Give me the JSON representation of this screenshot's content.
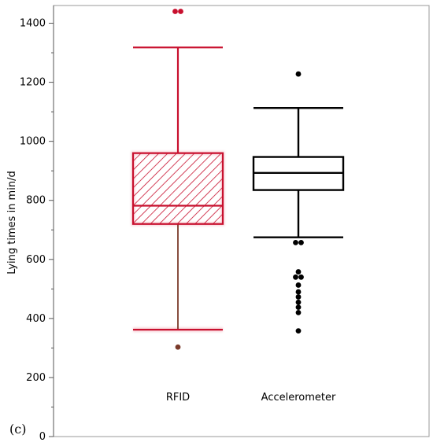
{
  "panel_label": "(c)",
  "chart_data": {
    "type": "box",
    "title": "",
    "xlabel": "",
    "ylabel": "Lying times in min/d",
    "ylim": [
      0,
      1460
    ],
    "yticks": [
      0,
      200,
      400,
      600,
      800,
      1000,
      1200,
      1400
    ],
    "minor_tick_step": 100,
    "grid": false,
    "categories": [
      "RFID",
      "Accelerometer"
    ],
    "series": [
      {
        "name": "RFID",
        "color": "#c8102e",
        "whisker_low": 362,
        "q1": 720,
        "median": 782,
        "q3": 960,
        "whisker_high": 1318,
        "box_pattern": "diagonal-hatch",
        "outliers": [
          {
            "value": 1440,
            "count": 2
          },
          {
            "value": 303,
            "count": 1
          }
        ]
      },
      {
        "name": "Accelerometer",
        "color": "#000000",
        "whisker_low": 675,
        "q1": 835,
        "median": 893,
        "q3": 947,
        "whisker_high": 1113,
        "box_pattern": "none",
        "outliers": [
          {
            "value": 1228,
            "count": 1
          },
          {
            "value": 657,
            "count": 2
          },
          {
            "value": 558,
            "count": 1
          },
          {
            "value": 540,
            "count": 2
          },
          {
            "value": 513,
            "count": 1
          },
          {
            "value": 490,
            "count": 1
          },
          {
            "value": 473,
            "count": 1
          },
          {
            "value": 455,
            "count": 1
          },
          {
            "value": 438,
            "count": 1
          },
          {
            "value": 420,
            "count": 1
          },
          {
            "value": 358,
            "count": 1
          }
        ]
      }
    ]
  }
}
